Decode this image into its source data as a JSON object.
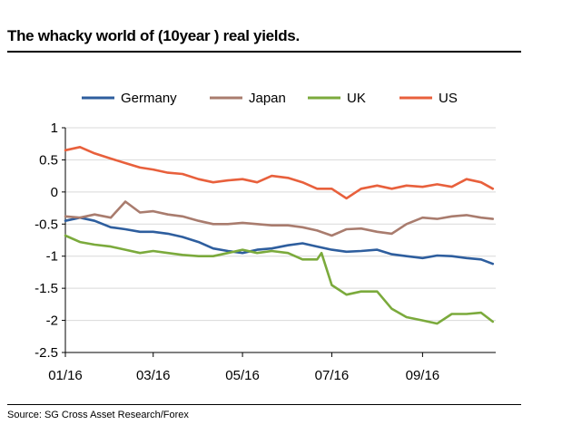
{
  "chart_data": {
    "type": "line",
    "title": "The whacky world of (10year ) real yields.",
    "source": "Source: SG Cross Asset Research/Forex",
    "xlabel": "",
    "ylabel": "",
    "ylim": [
      -2.5,
      1
    ],
    "yticks": [
      {
        "value": 1,
        "label": "1"
      },
      {
        "value": 0.5,
        "label": "0.5"
      },
      {
        "value": 0,
        "label": "0"
      },
      {
        "value": -0.5,
        "label": "-0.5"
      },
      {
        "value": -1,
        "label": "-1"
      },
      {
        "value": -1.5,
        "label": "-1.5"
      },
      {
        "value": -2,
        "label": "-2"
      },
      {
        "value": -2.5,
        "label": "-2.5"
      }
    ],
    "xlim": [
      "2016-01-01",
      "2016-10-21"
    ],
    "xticks": [
      {
        "value": "2016-01-01",
        "label": "01/16"
      },
      {
        "value": "2016-03-01",
        "label": "03/16"
      },
      {
        "value": "2016-05-01",
        "label": "05/16"
      },
      {
        "value": "2016-07-01",
        "label": "07/16"
      },
      {
        "value": "2016-09-01",
        "label": "09/16"
      }
    ],
    "grid": "horizontal",
    "legend_position": "top",
    "series": [
      {
        "name": "Germany",
        "color": "#2E5E9E",
        "x": [
          "2016-01-01",
          "2016-01-11",
          "2016-01-21",
          "2016-02-01",
          "2016-02-11",
          "2016-02-21",
          "2016-03-01",
          "2016-03-11",
          "2016-03-21",
          "2016-04-01",
          "2016-04-11",
          "2016-04-21",
          "2016-05-01",
          "2016-05-11",
          "2016-05-21",
          "2016-06-01",
          "2016-06-11",
          "2016-06-21",
          "2016-07-01",
          "2016-07-11",
          "2016-07-21",
          "2016-08-01",
          "2016-08-11",
          "2016-08-21",
          "2016-09-01",
          "2016-09-11",
          "2016-09-21",
          "2016-10-01",
          "2016-10-11",
          "2016-10-19"
        ],
        "values": [
          -0.45,
          -0.4,
          -0.45,
          -0.55,
          -0.58,
          -0.62,
          -0.62,
          -0.65,
          -0.7,
          -0.78,
          -0.88,
          -0.92,
          -0.95,
          -0.9,
          -0.88,
          -0.83,
          -0.8,
          -0.85,
          -0.9,
          -0.93,
          -0.92,
          -0.9,
          -0.97,
          -1.0,
          -1.03,
          -0.99,
          -1.0,
          -1.03,
          -1.05,
          -1.12
        ]
      },
      {
        "name": "Japan",
        "color": "#A97C6E",
        "x": [
          "2016-01-01",
          "2016-01-11",
          "2016-01-21",
          "2016-02-01",
          "2016-02-11",
          "2016-02-21",
          "2016-03-01",
          "2016-03-11",
          "2016-03-21",
          "2016-04-01",
          "2016-04-11",
          "2016-04-21",
          "2016-05-01",
          "2016-05-11",
          "2016-05-21",
          "2016-06-01",
          "2016-06-11",
          "2016-06-21",
          "2016-07-01",
          "2016-07-11",
          "2016-07-21",
          "2016-08-01",
          "2016-08-11",
          "2016-08-21",
          "2016-09-01",
          "2016-09-11",
          "2016-09-21",
          "2016-10-01",
          "2016-10-11",
          "2016-10-19"
        ],
        "values": [
          -0.38,
          -0.4,
          -0.35,
          -0.4,
          -0.15,
          -0.32,
          -0.3,
          -0.35,
          -0.38,
          -0.45,
          -0.5,
          -0.5,
          -0.48,
          -0.5,
          -0.52,
          -0.52,
          -0.55,
          -0.6,
          -0.68,
          -0.58,
          -0.57,
          -0.62,
          -0.65,
          -0.5,
          -0.4,
          -0.42,
          -0.38,
          -0.36,
          -0.4,
          -0.42
        ]
      },
      {
        "name": "UK",
        "color": "#7BAA3C",
        "x": [
          "2016-01-01",
          "2016-01-11",
          "2016-01-21",
          "2016-02-01",
          "2016-02-11",
          "2016-02-21",
          "2016-03-01",
          "2016-03-11",
          "2016-03-21",
          "2016-04-01",
          "2016-04-11",
          "2016-04-21",
          "2016-05-01",
          "2016-05-11",
          "2016-05-21",
          "2016-06-01",
          "2016-06-11",
          "2016-06-21",
          "2016-06-24",
          "2016-07-01",
          "2016-07-11",
          "2016-07-21",
          "2016-08-01",
          "2016-08-11",
          "2016-08-21",
          "2016-09-01",
          "2016-09-11",
          "2016-09-21",
          "2016-10-01",
          "2016-10-11",
          "2016-10-19"
        ],
        "values": [
          -0.68,
          -0.78,
          -0.82,
          -0.85,
          -0.9,
          -0.95,
          -0.92,
          -0.95,
          -0.98,
          -1.0,
          -1.0,
          -0.95,
          -0.9,
          -0.95,
          -0.92,
          -0.95,
          -1.05,
          -1.05,
          -0.95,
          -1.45,
          -1.6,
          -1.55,
          -1.55,
          -1.82,
          -1.95,
          -2.0,
          -2.05,
          -1.9,
          -1.9,
          -1.88,
          -2.02
        ]
      },
      {
        "name": "US",
        "color": "#E8603C",
        "x": [
          "2016-01-01",
          "2016-01-11",
          "2016-01-21",
          "2016-02-01",
          "2016-02-11",
          "2016-02-21",
          "2016-03-01",
          "2016-03-11",
          "2016-03-21",
          "2016-04-01",
          "2016-04-11",
          "2016-04-21",
          "2016-05-01",
          "2016-05-11",
          "2016-05-21",
          "2016-06-01",
          "2016-06-11",
          "2016-06-21",
          "2016-07-01",
          "2016-07-11",
          "2016-07-21",
          "2016-08-01",
          "2016-08-11",
          "2016-08-21",
          "2016-09-01",
          "2016-09-11",
          "2016-09-21",
          "2016-10-01",
          "2016-10-11",
          "2016-10-19"
        ],
        "values": [
          0.65,
          0.7,
          0.6,
          0.52,
          0.45,
          0.38,
          0.35,
          0.3,
          0.28,
          0.2,
          0.15,
          0.18,
          0.2,
          0.15,
          0.25,
          0.22,
          0.15,
          0.05,
          0.05,
          -0.1,
          0.05,
          0.1,
          0.05,
          0.1,
          0.08,
          0.12,
          0.08,
          0.2,
          0.15,
          0.05
        ]
      }
    ]
  }
}
